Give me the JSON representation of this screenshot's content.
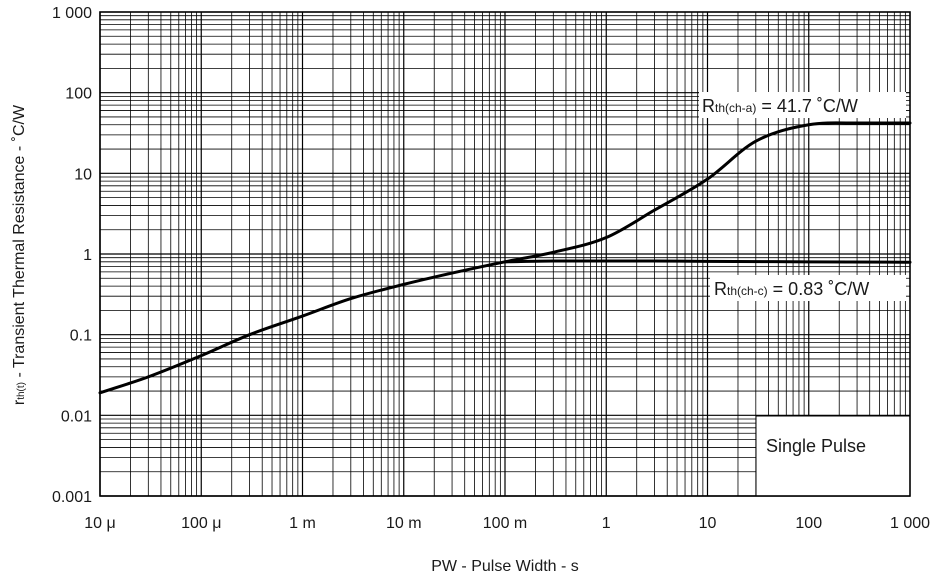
{
  "chart_data": {
    "type": "line",
    "xlabel": "PW - Pulse Width - s",
    "ylabel_main": "r",
    "ylabel_sub": "th(t)",
    "ylabel_rest": " - Transient Thermal Resistance - ˚C/W",
    "xscale": "log",
    "yscale": "log",
    "xlim": [
      1e-05,
      1000
    ],
    "ylim": [
      0.001,
      1000
    ],
    "grid": true,
    "x_ticks": [
      {
        "value": 1e-05,
        "label": "10 μ"
      },
      {
        "value": 0.0001,
        "label": "100 μ"
      },
      {
        "value": 0.001,
        "label": "1 m"
      },
      {
        "value": 0.01,
        "label": "10 m"
      },
      {
        "value": 0.1,
        "label": "100 m"
      },
      {
        "value": 1,
        "label": "1"
      },
      {
        "value": 10,
        "label": "10"
      },
      {
        "value": 100,
        "label": "100"
      },
      {
        "value": 1000,
        "label": "1 000"
      }
    ],
    "y_ticks": [
      {
        "value": 0.001,
        "label": "0.001"
      },
      {
        "value": 0.01,
        "label": "0.01"
      },
      {
        "value": 0.1,
        "label": "0.1"
      },
      {
        "value": 1,
        "label": "1"
      },
      {
        "value": 10,
        "label": "10"
      },
      {
        "value": 100,
        "label": "100"
      },
      {
        "value": 1000,
        "label": "1 000"
      }
    ],
    "series": [
      {
        "x": [
          1e-05,
          3e-05,
          0.0001,
          0.0003,
          0.001,
          0.003,
          0.01,
          0.03,
          0.1,
          0.3,
          1,
          3,
          10,
          30,
          100,
          300,
          1000
        ],
        "y": [
          0.019,
          0.03,
          0.055,
          0.1,
          0.17,
          0.28,
          0.42,
          0.58,
          0.8,
          1.05,
          1.6,
          3.5,
          8.5,
          25,
          40,
          42,
          42
        ]
      },
      {
        "x": [
          0.1,
          0.3,
          1,
          3,
          10,
          100,
          1000
        ],
        "y": [
          0.8,
          0.82,
          0.82,
          0.82,
          0.81,
          0.8,
          0.79
        ]
      }
    ],
    "annotations": {
      "rth_ca_main": "R",
      "rth_ca_sub": "th(ch-a)",
      "rth_ca_value": " = 41.7 ˚C/W",
      "rth_cc_main": "R",
      "rth_cc_sub": "th(ch-c)",
      "rth_cc_value": " = 0.83 ˚C/W",
      "single_pulse": "Single Pulse"
    }
  }
}
